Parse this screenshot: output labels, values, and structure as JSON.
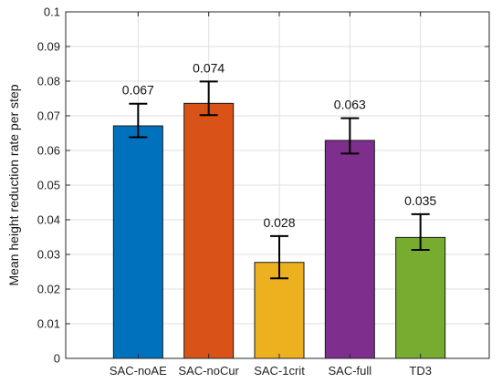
{
  "chart_data": {
    "type": "bar",
    "title": "",
    "xlabel": "",
    "ylabel": "Mean height reduction rate per step",
    "ylim": [
      0,
      0.1
    ],
    "yticks": [
      0,
      0.01,
      0.02,
      0.03,
      0.04,
      0.05,
      0.06,
      0.07,
      0.08,
      0.09,
      0.1
    ],
    "ytick_labels": [
      "0",
      "0.01",
      "0.02",
      "0.03",
      "0.04",
      "0.05",
      "0.06",
      "0.07",
      "0.08",
      "0.09",
      "0.1"
    ],
    "grid": true,
    "categories": [
      "SAC-noAE",
      "SAC-noCur",
      "SAC-1crit",
      "SAC-full",
      "TD3"
    ],
    "values": [
      0.0671,
      0.0736,
      0.0277,
      0.0629,
      0.0349
    ],
    "value_labels": [
      "0.067",
      "0.074",
      "0.028",
      "0.063",
      "0.035"
    ],
    "error_low": [
      0.0638,
      0.0702,
      0.0231,
      0.0591,
      0.0313
    ],
    "error_high": [
      0.0735,
      0.0799,
      0.0353,
      0.0693,
      0.0416
    ],
    "colors": [
      "#0072BD",
      "#D95319",
      "#EDB120",
      "#7E2F8E",
      "#77AC30"
    ]
  }
}
